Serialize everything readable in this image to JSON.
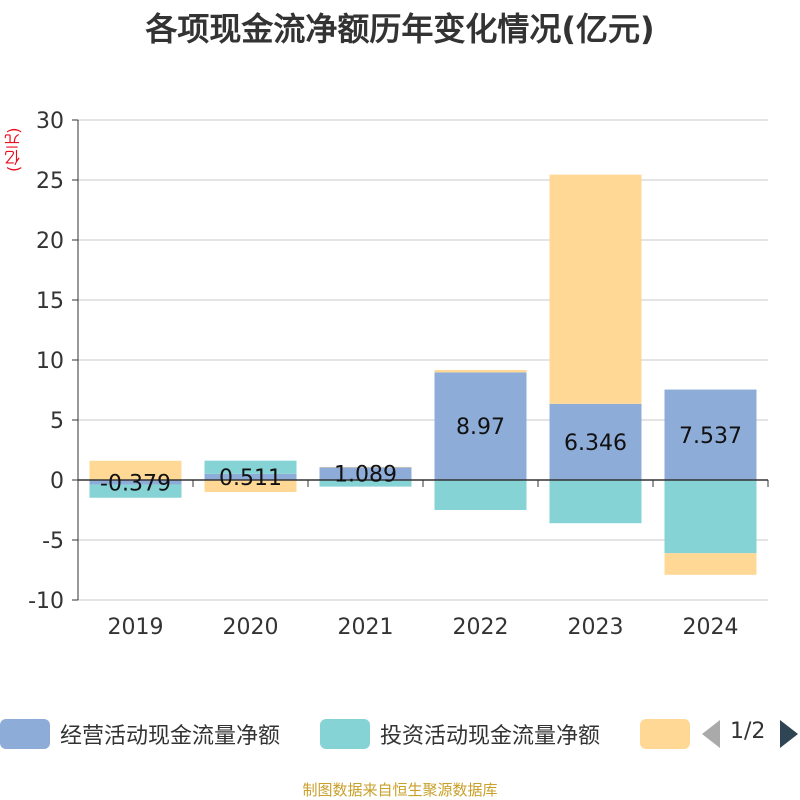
{
  "chart_data": {
    "type": "bar",
    "stacked": true,
    "title": "各项现金流净额历年变化情况(亿元)",
    "ylabel": "(亿元)",
    "ylim": [
      -10,
      30
    ],
    "yticks": [
      30,
      25,
      20,
      15,
      10,
      5,
      0,
      -5,
      -10
    ],
    "grid": true,
    "legend_position": "bottom",
    "categories": [
      "2019",
      "2020",
      "2021",
      "2022",
      "2023",
      "2024"
    ],
    "series": [
      {
        "name": "经营活动现金流量净额",
        "color": "#8eacd8",
        "values": [
          -0.379,
          0.511,
          1.089,
          8.97,
          6.346,
          7.537
        ],
        "labels": [
          "-0.379",
          "0.511",
          "1.089",
          "8.97",
          "6.346",
          "7.537"
        ]
      },
      {
        "name": "投资活动现金流量净额",
        "color": "#86d3d6",
        "values": [
          -1.1,
          1.1,
          -0.55,
          -2.5,
          -3.6,
          -6.1
        ]
      },
      {
        "name": "",
        "color": "#ffd896",
        "values": [
          1.6,
          -1.0,
          0.0,
          0.2,
          19.1,
          -1.8
        ]
      }
    ]
  },
  "legend": {
    "page": "1/2"
  },
  "footer": {
    "source": "制图数据来自恒生聚源数据库"
  }
}
